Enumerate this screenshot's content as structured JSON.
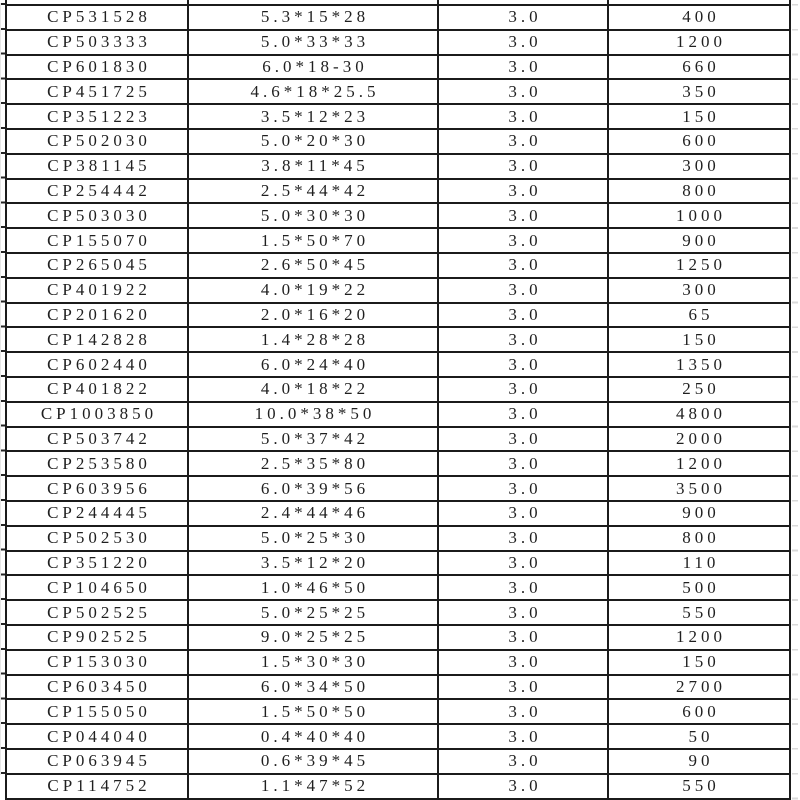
{
  "colors": {
    "border": "#1b1b1b",
    "text": "#1f1f1f",
    "gridline": "#d9d9d9"
  },
  "table": {
    "rows": [
      {
        "code": "CP531528",
        "size": "5.3*15*28",
        "val": "3.0",
        "qty": "400"
      },
      {
        "code": "CP503333",
        "size": "5.0*33*33",
        "val": "3.0",
        "qty": "1200"
      },
      {
        "code": "CP601830",
        "size": "6.0*18-30",
        "val": "3.0",
        "qty": "660"
      },
      {
        "code": "CP451725",
        "size": "4.6*18*25.5",
        "val": "3.0",
        "qty": "350"
      },
      {
        "code": "CP351223",
        "size": "3.5*12*23",
        "val": "3.0",
        "qty": "150"
      },
      {
        "code": "CP502030",
        "size": "5.0*20*30",
        "val": "3.0",
        "qty": "600"
      },
      {
        "code": "CP381145",
        "size": "3.8*11*45",
        "val": "3.0",
        "qty": "300"
      },
      {
        "code": "CP254442",
        "size": "2.5*44*42",
        "val": "3.0",
        "qty": "800"
      },
      {
        "code": "CP503030",
        "size": "5.0*30*30",
        "val": "3.0",
        "qty": "1000"
      },
      {
        "code": "CP155070",
        "size": "1.5*50*70",
        "val": "3.0",
        "qty": "900"
      },
      {
        "code": "CP265045",
        "size": "2.6*50*45",
        "val": "3.0",
        "qty": "1250"
      },
      {
        "code": "CP401922",
        "size": "4.0*19*22",
        "val": "3.0",
        "qty": "300"
      },
      {
        "code": "CP201620",
        "size": "2.0*16*20",
        "val": "3.0",
        "qty": "65"
      },
      {
        "code": "CP142828",
        "size": "1.4*28*28",
        "val": "3.0",
        "qty": "150"
      },
      {
        "code": "CP602440",
        "size": "6.0*24*40",
        "val": "3.0",
        "qty": "1350"
      },
      {
        "code": "CP401822",
        "size": "4.0*18*22",
        "val": "3.0",
        "qty": "250"
      },
      {
        "code": "CP1003850",
        "size": "10.0*38*50",
        "val": "3.0",
        "qty": "4800"
      },
      {
        "code": "CP503742",
        "size": "5.0*37*42",
        "val": "3.0",
        "qty": "2000"
      },
      {
        "code": "CP253580",
        "size": "2.5*35*80",
        "val": "3.0",
        "qty": "1200"
      },
      {
        "code": "CP603956",
        "size": "6.0*39*56",
        "val": "3.0",
        "qty": "3500"
      },
      {
        "code": "CP244445",
        "size": "2.4*44*46",
        "val": "3.0",
        "qty": "900"
      },
      {
        "code": "CP502530",
        "size": "5.0*25*30",
        "val": "3.0",
        "qty": "800"
      },
      {
        "code": "CP351220",
        "size": "3.5*12*20",
        "val": "3.0",
        "qty": "110"
      },
      {
        "code": "CP104650",
        "size": "1.0*46*50",
        "val": "3.0",
        "qty": "500"
      },
      {
        "code": "CP502525",
        "size": "5.0*25*25",
        "val": "3.0",
        "qty": "550"
      },
      {
        "code": "CP902525",
        "size": "9.0*25*25",
        "val": "3.0",
        "qty": "1200"
      },
      {
        "code": "CP153030",
        "size": "1.5*30*30",
        "val": "3.0",
        "qty": "150"
      },
      {
        "code": "CP603450",
        "size": "6.0*34*50",
        "val": "3.0",
        "qty": "2700"
      },
      {
        "code": "CP155050",
        "size": "1.5*50*50",
        "val": "3.0",
        "qty": "600"
      },
      {
        "code": "CP044040",
        "size": "0.4*40*40",
        "val": "3.0",
        "qty": "50"
      },
      {
        "code": "CP063945",
        "size": "0.6*39*45",
        "val": "3.0",
        "qty": "90"
      },
      {
        "code": "CP114752",
        "size": "1.1*47*52",
        "val": "3.0",
        "qty": "550"
      }
    ]
  }
}
